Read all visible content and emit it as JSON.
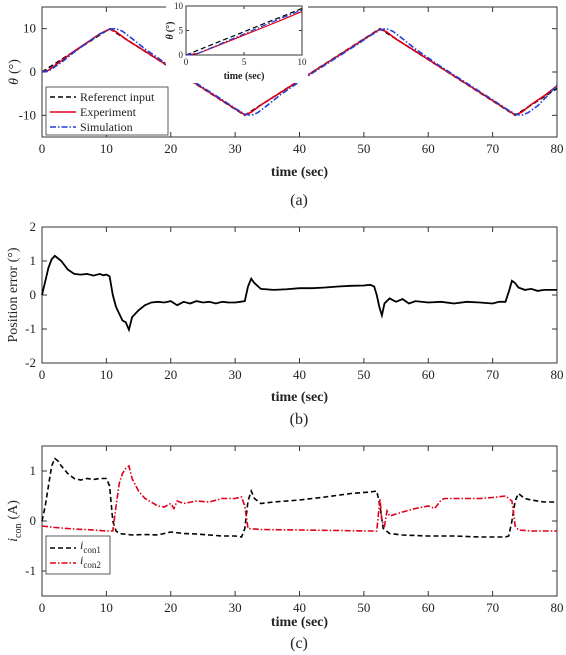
{
  "chart_data": [
    {
      "type": "line",
      "caption": "(a)",
      "xlabel": "time (sec)",
      "ylabel_symbol": "θ",
      "ylabel_unit": "(°)",
      "xlim": [
        0,
        80
      ],
      "ylim": [
        -15,
        15
      ],
      "xticks": [
        0,
        10,
        20,
        30,
        40,
        50,
        60,
        70,
        80
      ],
      "yticks": [
        -10,
        0,
        10
      ],
      "grid": false,
      "legend_position": "bottom-left",
      "series": [
        {
          "name": "Referenct input",
          "color": "#000000",
          "dash": "dashed",
          "x": [
            0,
            10.5,
            31.5,
            52.5,
            73.5,
            80
          ],
          "y": [
            0,
            10,
            -10,
            10,
            -10,
            -3.8
          ]
        },
        {
          "name": "Experiment",
          "color": "#e0001a",
          "dash": "solid",
          "x": [
            0,
            1,
            3,
            5,
            7,
            9,
            10.5,
            11.5,
            13,
            16,
            20,
            24,
            28,
            30,
            31.5,
            32.5,
            34,
            37,
            41,
            45,
            49,
            51,
            52.5,
            53.5,
            55,
            58,
            62,
            66,
            70,
            72,
            73.5,
            74.5,
            76,
            78,
            80
          ],
          "y": [
            0,
            0.4,
            2.6,
            4.8,
            6.8,
            8.8,
            9.9,
            9.3,
            7.6,
            4.8,
            1.0,
            -2.8,
            -6.6,
            -8.5,
            -9.9,
            -9.3,
            -7.6,
            -4.8,
            -1.0,
            2.8,
            6.6,
            8.5,
            9.9,
            9.3,
            7.6,
            4.8,
            1.0,
            -2.8,
            -6.6,
            -8.5,
            -9.9,
            -9.3,
            -7.5,
            -5.5,
            -3.2
          ]
        },
        {
          "name": "Simulation",
          "color": "#1f3fd6",
          "dash": "dashdot",
          "x": [
            0,
            1,
            3,
            5,
            7,
            9,
            10.5,
            11.5,
            12.5,
            14,
            16,
            20,
            24,
            28,
            30,
            31.5,
            32.5,
            33.5,
            35,
            37,
            41,
            45,
            49,
            51,
            52.5,
            53.5,
            54.5,
            56,
            58,
            62,
            66,
            70,
            72,
            73.5,
            74.5,
            75.5,
            77,
            78.5,
            80
          ],
          "y": [
            0,
            0.2,
            2.2,
            4.6,
            6.7,
            8.8,
            9.9,
            10.0,
            9.4,
            7.7,
            5.3,
            1.2,
            -2.6,
            -6.4,
            -8.4,
            -9.7,
            -10.0,
            -9.4,
            -7.7,
            -5.3,
            -1.2,
            2.6,
            6.4,
            8.4,
            9.7,
            10.0,
            9.4,
            7.7,
            5.3,
            1.2,
            -2.6,
            -6.4,
            -8.4,
            -9.7,
            -10.0,
            -9.4,
            -7.8,
            -5.5,
            -3.0
          ]
        }
      ],
      "inset": {
        "xlabel": "time (sec)",
        "ylabel_symbol": "θ",
        "ylabel_unit": "(°)",
        "xlim": [
          0,
          10
        ],
        "ylim": [
          0,
          10
        ],
        "xticks": [
          0,
          5,
          10
        ],
        "yticks": [
          0,
          5,
          10
        ],
        "series": [
          {
            "name": "Referenct input",
            "color": "#000000",
            "dash": "dashed",
            "x": [
              0,
              10
            ],
            "y": [
              0,
              9.5
            ]
          },
          {
            "name": "Experiment",
            "color": "#e0001a",
            "dash": "solid",
            "x": [
              0,
              1,
              2,
              4,
              6,
              8,
              10
            ],
            "y": [
              0,
              0.3,
              1.2,
              3.1,
              5.0,
              6.9,
              8.9
            ]
          },
          {
            "name": "Simulation",
            "color": "#1f3fd6",
            "dash": "dashdot",
            "x": [
              0,
              1,
              2,
              4,
              6,
              8,
              10
            ],
            "y": [
              0,
              0.3,
              1.3,
              3.3,
              5.3,
              7.3,
              9.2
            ]
          }
        ]
      }
    },
    {
      "type": "line",
      "caption": "(b)",
      "xlabel": "time (sec)",
      "ylabel": "Position error (°)",
      "xlim": [
        0,
        80
      ],
      "ylim": [
        -2,
        2
      ],
      "xticks": [
        0,
        10,
        20,
        30,
        40,
        50,
        60,
        70,
        80
      ],
      "yticks": [
        -2,
        -1,
        0,
        1,
        2
      ],
      "grid": false,
      "series": [
        {
          "name": "",
          "color": "#000000",
          "dash": "solid",
          "x": [
            0,
            0.5,
            1,
            1.5,
            2,
            3,
            4,
            5,
            6,
            7,
            8,
            9,
            9.5,
            10,
            10.5,
            11,
            11.5,
            12,
            12.5,
            13,
            13.5,
            14,
            15,
            16,
            17,
            18,
            19,
            20,
            21,
            22,
            23,
            24,
            25,
            26,
            27,
            28,
            29,
            30,
            30.8,
            31.5,
            32,
            32.5,
            33,
            34,
            36,
            38,
            40,
            42,
            44,
            46,
            48,
            50,
            51,
            51.6,
            52,
            52.4,
            52.8,
            53.2,
            54,
            55,
            56,
            57,
            58,
            60,
            62,
            64,
            66,
            68,
            70,
            71,
            72,
            72.6,
            73,
            73.5,
            74,
            75,
            76,
            77,
            78,
            80
          ],
          "y": [
            0,
            0.4,
            0.8,
            1.05,
            1.15,
            1.0,
            0.75,
            0.62,
            0.6,
            0.62,
            0.57,
            0.62,
            0.58,
            0.6,
            0.55,
            0.0,
            -0.35,
            -0.55,
            -0.75,
            -0.8,
            -1.02,
            -0.65,
            -0.45,
            -0.3,
            -0.22,
            -0.2,
            -0.22,
            -0.18,
            -0.3,
            -0.2,
            -0.25,
            -0.18,
            -0.22,
            -0.2,
            -0.25,
            -0.2,
            -0.22,
            -0.22,
            -0.2,
            -0.18,
            0.25,
            0.48,
            0.35,
            0.18,
            0.15,
            0.17,
            0.2,
            0.2,
            0.22,
            0.25,
            0.27,
            0.28,
            0.3,
            0.25,
            0.0,
            -0.35,
            -0.6,
            -0.25,
            -0.1,
            -0.2,
            -0.12,
            -0.25,
            -0.18,
            -0.22,
            -0.2,
            -0.25,
            -0.2,
            -0.22,
            -0.25,
            -0.2,
            -0.2,
            0.15,
            0.42,
            0.35,
            0.22,
            0.15,
            0.18,
            0.12,
            0.15,
            0.15
          ]
        }
      ]
    },
    {
      "type": "line",
      "caption": "(c)",
      "xlabel": "time (sec)",
      "ylabel_symbol": "i",
      "ylabel_subscript": "con",
      "ylabel_unit": "(A)",
      "xlim": [
        0,
        80
      ],
      "ylim": [
        -1.5,
        1.5
      ],
      "xticks": [
        0,
        10,
        20,
        30,
        40,
        50,
        60,
        70,
        80
      ],
      "yticks": [
        -1,
        0,
        1
      ],
      "grid": false,
      "legend_position": "bottom-left",
      "series": [
        {
          "name": "i",
          "name_subscript": "con1",
          "color": "#000000",
          "dash": "dashed",
          "x": [
            0,
            0.5,
            1,
            1.5,
            2,
            2.5,
            3,
            4,
            5,
            6,
            7,
            8,
            9,
            10,
            10.5,
            11,
            11.5,
            12,
            14,
            16,
            18,
            20,
            22,
            24,
            26,
            28,
            30,
            31,
            31.5,
            32,
            32.5,
            33,
            34,
            36,
            40,
            44,
            48,
            51,
            52,
            52.5,
            53,
            54,
            56,
            60,
            64,
            68,
            72,
            72.5,
            73,
            73.5,
            74,
            75,
            76,
            78,
            80
          ],
          "y": [
            0,
            0.3,
            0.7,
            1.1,
            1.25,
            1.2,
            1.1,
            0.95,
            0.85,
            0.82,
            0.85,
            0.83,
            0.85,
            0.85,
            0.7,
            0.0,
            -0.2,
            -0.25,
            -0.28,
            -0.27,
            -0.28,
            -0.22,
            -0.25,
            -0.26,
            -0.28,
            -0.3,
            -0.3,
            -0.32,
            -0.15,
            0.4,
            0.6,
            0.45,
            0.35,
            0.38,
            0.42,
            0.48,
            0.55,
            0.58,
            0.6,
            0.3,
            -0.15,
            -0.25,
            -0.28,
            -0.3,
            -0.3,
            -0.32,
            -0.32,
            -0.3,
            0.0,
            0.4,
            0.55,
            0.45,
            0.42,
            0.38,
            0.38
          ]
        },
        {
          "name": "i",
          "name_subscript": "con2",
          "color": "#e0001a",
          "dash": "dashdot",
          "x": [
            0,
            2,
            5,
            8,
            10,
            11,
            11.5,
            12,
            12.5,
            13,
            13.5,
            14,
            15,
            16,
            18,
            19,
            20,
            20.5,
            21,
            22,
            24,
            26,
            28,
            30,
            31,
            31.5,
            32,
            34,
            40,
            46,
            50,
            52,
            52.5,
            52.8,
            53.2,
            53.6,
            54,
            56,
            58,
            60,
            61,
            62,
            62.5,
            64,
            66,
            68,
            70,
            72,
            73,
            73.5,
            74,
            76,
            80
          ],
          "y": [
            -0.1,
            -0.13,
            -0.16,
            -0.18,
            -0.2,
            -0.2,
            0.3,
            0.75,
            0.95,
            1.05,
            1.1,
            0.85,
            0.6,
            0.45,
            0.3,
            0.28,
            0.35,
            0.25,
            0.4,
            0.35,
            0.4,
            0.38,
            0.45,
            0.45,
            0.48,
            0.3,
            -0.15,
            -0.17,
            -0.18,
            -0.19,
            -0.2,
            -0.2,
            0.45,
            0.0,
            -0.1,
            0.2,
            0.1,
            0.18,
            0.25,
            0.3,
            0.25,
            0.42,
            0.45,
            0.45,
            0.45,
            0.45,
            0.47,
            0.5,
            0.4,
            -0.1,
            -0.18,
            -0.2,
            -0.2
          ]
        }
      ]
    }
  ]
}
